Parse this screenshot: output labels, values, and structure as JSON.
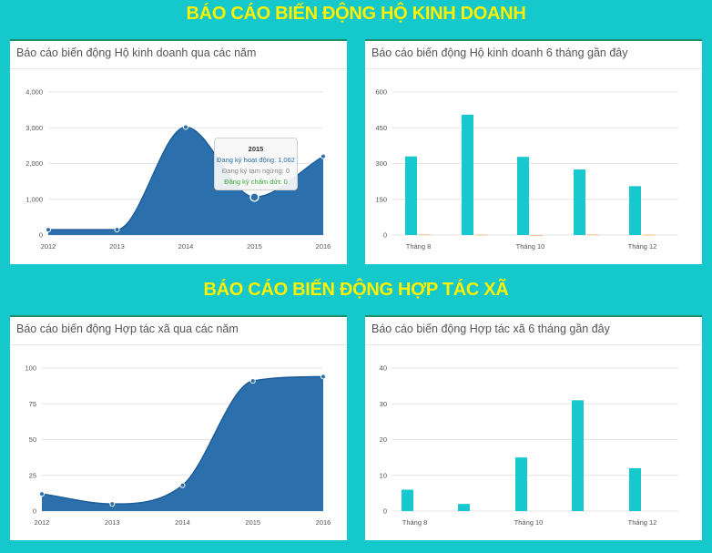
{
  "sections": {
    "business_title": "BÁO CÁO BIẾN ĐỘNG HỘ KINH DOANH",
    "coop_title": "BÁO CÁO BIẾN ĐỘNG HỢP TÁC XÃ"
  },
  "colors": {
    "page_bg": "#14c8cb",
    "section_title": "#fff200",
    "area_fill": "#2b6fad",
    "bar_primary": "#17c9cf",
    "bar_secondary": "#f7b26b"
  },
  "tooltip": {
    "title": "2015",
    "line1": "Đang ký hoạt động: 1,062",
    "line2": "Đang ký tạm ngừng: 0",
    "line3": "Đăng ký chấm dứt: 0"
  },
  "chart_data": [
    {
      "id": "hkd_years",
      "type": "area",
      "title": "Báo cáo biến động Hộ kinh doanh qua các năm",
      "categories": [
        "2012",
        "2013",
        "2014",
        "2015",
        "2016"
      ],
      "series": [
        {
          "values": [
            150,
            150,
            3020,
            1062,
            2200
          ]
        }
      ],
      "ylim": [
        0,
        4000
      ],
      "yticks": [
        "0",
        "1,000",
        "2,000",
        "3,000",
        "4,000"
      ],
      "grid": true,
      "legend": "none"
    },
    {
      "id": "hkd_months",
      "type": "bar",
      "title": "Báo cáo biến động Hộ kinh doanh 6 tháng gần đây",
      "categories": [
        "Tháng 8",
        "",
        "Tháng 10",
        "",
        "Tháng 12"
      ],
      "series": [
        {
          "values": [
            330,
            505,
            328,
            275,
            205
          ]
        },
        {
          "values": [
            2,
            2,
            0,
            2,
            2
          ]
        }
      ],
      "ylim": [
        0,
        600
      ],
      "yticks": [
        "0",
        "150",
        "300",
        "450",
        "600"
      ],
      "grid": true,
      "legend": "none"
    },
    {
      "id": "htx_years",
      "type": "area",
      "title": "Báo cáo biến động Hợp tác xã qua các năm",
      "categories": [
        "2012",
        "2013",
        "2014",
        "2015",
        "2016"
      ],
      "series": [
        {
          "values": [
            12,
            5,
            18,
            91,
            94
          ]
        }
      ],
      "ylim": [
        0,
        100
      ],
      "yticks": [
        "0",
        "25",
        "50",
        "75",
        "100"
      ],
      "grid": true,
      "legend": "none"
    },
    {
      "id": "htx_months",
      "type": "bar",
      "title": "Báo cáo biến động Hợp tác xã 6 tháng gần đây",
      "categories": [
        "Tháng 8",
        "",
        "Tháng 10",
        "",
        "Tháng 12"
      ],
      "series": [
        {
          "values": [
            6,
            2,
            15,
            31,
            12
          ]
        }
      ],
      "ylim": [
        0,
        40
      ],
      "yticks": [
        "0",
        "10",
        "20",
        "30",
        "40"
      ],
      "grid": true,
      "legend": "none"
    }
  ]
}
